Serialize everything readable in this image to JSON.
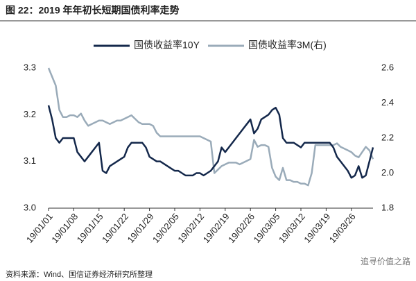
{
  "chart_data": {
    "type": "line",
    "title": "图 22：2019 年年初长短期国债利率走势",
    "source": "资料来源：Wind、国信证券经济研究所整理",
    "watermark": "追寻价值之路",
    "categories": [
      "19/01/01",
      null,
      null,
      null,
      null,
      null,
      null,
      "19/01/08",
      null,
      null,
      null,
      null,
      null,
      null,
      "19/01/15",
      null,
      null,
      null,
      null,
      null,
      null,
      "19/01/22",
      null,
      null,
      null,
      null,
      null,
      null,
      "19/01/29",
      null,
      null,
      null,
      null,
      null,
      null,
      "19/02/05",
      null,
      null,
      null,
      null,
      null,
      null,
      "19/02/12",
      null,
      null,
      null,
      null,
      null,
      null,
      "19/02/19",
      null,
      null,
      null,
      null,
      null,
      null,
      "19/02/26",
      null,
      null,
      null,
      null,
      null,
      null,
      "19/03/05",
      null,
      null,
      null,
      null,
      null,
      null,
      "19/03/12",
      null,
      null,
      null,
      null,
      null,
      null,
      "19/03/19",
      null,
      null,
      null,
      null,
      null,
      null,
      "19/03/26",
      null,
      null,
      null,
      null,
      null,
      null
    ],
    "series": [
      {
        "name": "国债收益率10Y",
        "color": "#14284b",
        "axis": "y",
        "values": [
          3.22,
          3.19,
          3.15,
          3.14,
          3.15,
          3.15,
          3.15,
          3.15,
          3.12,
          3.11,
          3.1,
          3.11,
          3.12,
          3.13,
          3.14,
          3.08,
          3.075,
          3.09,
          3.095,
          3.1,
          3.105,
          3.11,
          3.13,
          3.14,
          3.14,
          3.14,
          3.14,
          3.13,
          3.11,
          3.105,
          3.1,
          3.1,
          3.095,
          3.09,
          3.085,
          3.08,
          3.08,
          3.075,
          3.07,
          3.07,
          3.07,
          3.075,
          3.075,
          3.07,
          3.075,
          3.08,
          3.09,
          3.1,
          3.13,
          3.12,
          3.13,
          3.14,
          3.15,
          3.16,
          3.17,
          3.18,
          3.19,
          3.16,
          3.17,
          3.19,
          3.195,
          3.2,
          3.21,
          3.215,
          3.2,
          3.15,
          3.14,
          3.14,
          3.14,
          3.135,
          3.13,
          3.14,
          3.14,
          3.14,
          3.14,
          3.14,
          3.14,
          3.14,
          3.14,
          3.13,
          3.11,
          3.1,
          3.09,
          3.08,
          3.065,
          3.07,
          3.09,
          3.065,
          3.07,
          3.1,
          3.13
        ]
      },
      {
        "name": "国债收益率3M(右)",
        "color": "#9aabb9",
        "axis": "y2",
        "values": [
          2.6,
          2.55,
          2.5,
          2.36,
          2.32,
          2.32,
          2.33,
          2.33,
          2.32,
          2.34,
          2.3,
          2.27,
          2.28,
          2.29,
          2.3,
          2.3,
          2.29,
          2.28,
          2.29,
          2.3,
          2.3,
          2.31,
          2.32,
          2.33,
          2.31,
          2.29,
          2.28,
          2.28,
          2.28,
          2.27,
          2.23,
          2.21,
          2.21,
          2.21,
          2.21,
          2.21,
          2.21,
          2.21,
          2.21,
          2.21,
          2.21,
          2.21,
          2.21,
          2.2,
          2.19,
          2.18,
          2.0,
          2.02,
          2.04,
          2.05,
          2.06,
          2.06,
          2.06,
          2.05,
          2.06,
          2.07,
          2.08,
          2.19,
          2.15,
          2.16,
          2.16,
          2.15,
          2.03,
          1.98,
          1.96,
          2.03,
          1.96,
          1.96,
          1.95,
          1.95,
          1.94,
          1.94,
          1.93,
          2.0,
          2.16,
          2.16,
          2.16,
          2.16,
          2.16,
          2.16,
          2.17,
          2.15,
          2.14,
          2.13,
          2.12,
          2.1,
          2.09,
          2.12,
          2.15,
          2.13,
          2.08
        ]
      }
    ],
    "ylim": [
      3.0,
      3.3
    ],
    "yticks": [
      {
        "value": 3.0,
        "label": "3.0"
      },
      3.1,
      3.2,
      3.3
    ],
    "y2lim": [
      1.8,
      2.6
    ],
    "y2ticks": [
      1.8,
      {
        "value": 2.0,
        "label": "2.0"
      },
      2.2,
      2.4,
      2.6
    ],
    "legend": "top"
  }
}
